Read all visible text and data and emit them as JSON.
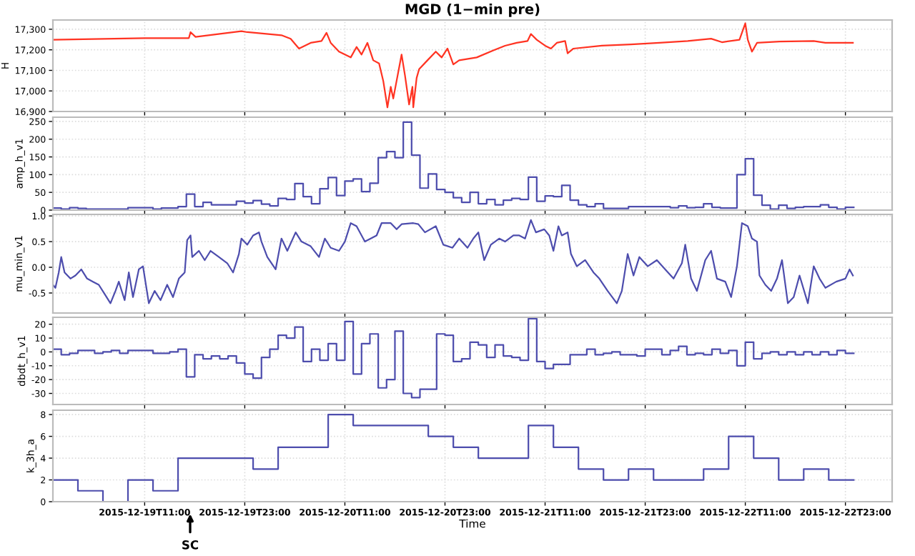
{
  "chart_data": [
    {
      "type": "line",
      "title": "MGD (1−min pre)",
      "ylabel": "H",
      "xlim": [
        "2015-12-19T00:00",
        "2015-12-23T04:36"
      ],
      "ylim": [
        16900,
        17345
      ],
      "yticks": [
        {
          "value": 16900,
          "label": "16,900"
        },
        {
          "value": 17000,
          "label": "17,000"
        },
        {
          "value": 17100,
          "label": "17,100"
        },
        {
          "value": 17200,
          "label": "17,200"
        },
        {
          "value": 17300,
          "label": "17,300"
        }
      ],
      "xticks": [
        "2015-12-19T11:00",
        "2015-12-19T23:00",
        "2015-12-20T11:00",
        "2015-12-20T23:00",
        "2015-12-21T11:00",
        "2015-12-21T23:00",
        "2015-12-22T11:00",
        "2015-12-22T23:00"
      ],
      "tick_labels": "y",
      "grid": true,
      "series": [
        {
          "color": "#ff3322",
          "x": [
            "2015-12-19T00:00",
            "2015-12-19T11:00",
            "2015-12-19T16:18",
            "2015-12-19T16:30",
            "2015-12-19T17:06",
            "2015-12-19T22:36",
            "2015-12-19T23:18",
            "2015-12-20T03:24",
            "2015-12-20T04:30",
            "2015-12-20T05:30",
            "2015-12-20T06:54",
            "2015-12-20T08:12",
            "2015-12-20T08:48",
            "2015-12-20T09:18",
            "2015-12-20T10:18",
            "2015-12-20T11:42",
            "2015-12-20T12:24",
            "2015-12-20T13:00",
            "2015-12-20T13:42",
            "2015-12-20T14:24",
            "2015-12-20T15:06",
            "2015-12-20T15:36",
            "2015-12-20T16:06",
            "2015-12-20T16:30",
            "2015-12-20T16:48",
            "2015-12-20T17:12",
            "2015-12-20T17:48",
            "2015-12-20T18:12",
            "2015-12-20T18:42",
            "2015-12-20T19:06",
            "2015-12-20T19:12",
            "2015-12-20T19:36",
            "2015-12-20T19:54",
            "2015-12-20T20:54",
            "2015-12-20T21:54",
            "2015-12-20T22:36",
            "2015-12-20T23:18",
            "2015-12-21T00:00",
            "2015-12-21T00:42",
            "2015-12-21T02:48",
            "2015-12-21T04:48",
            "2015-12-21T06:12",
            "2015-12-21T07:36",
            "2015-12-21T08:54",
            "2015-12-21T09:18",
            "2015-12-21T10:00",
            "2015-12-21T11:00",
            "2015-12-21T11:42",
            "2015-12-21T12:24",
            "2015-12-21T13:24",
            "2015-12-21T13:42",
            "2015-12-21T14:24",
            "2015-12-21T17:48",
            "2015-12-21T21:18",
            "2015-12-22T00:42",
            "2015-12-22T04:06",
            "2015-12-22T06:54",
            "2015-12-22T08:12",
            "2015-12-22T10:18",
            "2015-12-22T11:00",
            "2015-12-22T11:18",
            "2015-12-22T11:48",
            "2015-12-22T12:24",
            "2015-12-22T15:06",
            "2015-12-22T19:12",
            "2015-12-22T20:36",
            "2015-12-22T23:54"
          ],
          "values": [
            17249,
            17257,
            17257,
            17286,
            17263,
            17291,
            17286,
            17271,
            17254,
            17206,
            17234,
            17243,
            17283,
            17234,
            17191,
            17163,
            17214,
            17177,
            17234,
            17149,
            17134,
            17049,
            16920,
            17020,
            16963,
            17049,
            17177,
            17077,
            16934,
            17020,
            16920,
            17063,
            17106,
            17149,
            17191,
            17163,
            17206,
            17129,
            17149,
            17163,
            17197,
            17220,
            17234,
            17243,
            17277,
            17249,
            17220,
            17206,
            17234,
            17243,
            17183,
            17206,
            17220,
            17226,
            17234,
            17243,
            17254,
            17237,
            17249,
            17329,
            17249,
            17191,
            17234,
            17240,
            17243,
            17234,
            17234
          ]
        }
      ]
    },
    {
      "type": "step",
      "ylabel": "amp_h_v1",
      "xlim": [
        "2015-12-19T00:00",
        "2015-12-23T04:36"
      ],
      "ylim": [
        0,
        262
      ],
      "yticks": [
        0,
        50,
        100,
        150,
        200,
        250
      ],
      "xticks": [
        "2015-12-19T11:00",
        "2015-12-19T23:00",
        "2015-12-20T11:00",
        "2015-12-20T23:00",
        "2015-12-21T11:00",
        "2015-12-21T23:00",
        "2015-12-22T11:00",
        "2015-12-22T23:00"
      ],
      "tick_labels": "y",
      "grid": true,
      "x": [
        "2015-12-19T00:00",
        "2015-12-19T01:00",
        "2015-12-19T02:00",
        "2015-12-19T03:00",
        "2015-12-19T04:00",
        "2015-12-19T05:00",
        "2015-12-19T06:00",
        "2015-12-19T07:00",
        "2015-12-19T08:00",
        "2015-12-19T09:00",
        "2015-12-19T10:00",
        "2015-12-19T11:00",
        "2015-12-19T12:00",
        "2015-12-19T13:00",
        "2015-12-19T14:00",
        "2015-12-19T15:00",
        "2015-12-19T16:00",
        "2015-12-19T17:00",
        "2015-12-19T18:00",
        "2015-12-19T19:00",
        "2015-12-19T20:00",
        "2015-12-19T21:00",
        "2015-12-19T22:00",
        "2015-12-19T23:00",
        "2015-12-20T00:00",
        "2015-12-20T01:00",
        "2015-12-20T02:00",
        "2015-12-20T03:00",
        "2015-12-20T04:00",
        "2015-12-20T05:00",
        "2015-12-20T06:00",
        "2015-12-20T07:00",
        "2015-12-20T08:00",
        "2015-12-20T09:00",
        "2015-12-20T10:00",
        "2015-12-20T11:00",
        "2015-12-20T12:00",
        "2015-12-20T13:00",
        "2015-12-20T14:00",
        "2015-12-20T15:00",
        "2015-12-20T16:00",
        "2015-12-20T17:00",
        "2015-12-20T18:00",
        "2015-12-20T19:00",
        "2015-12-20T20:00",
        "2015-12-20T21:00",
        "2015-12-20T22:00",
        "2015-12-20T23:00",
        "2015-12-21T00:00",
        "2015-12-21T01:00",
        "2015-12-21T02:00",
        "2015-12-21T03:00",
        "2015-12-21T04:00",
        "2015-12-21T05:00",
        "2015-12-21T06:00",
        "2015-12-21T07:00",
        "2015-12-21T08:00",
        "2015-12-21T09:00",
        "2015-12-21T10:00",
        "2015-12-21T11:00",
        "2015-12-21T12:00",
        "2015-12-21T13:00",
        "2015-12-21T14:00",
        "2015-12-21T15:00",
        "2015-12-21T16:00",
        "2015-12-21T17:00",
        "2015-12-21T18:00",
        "2015-12-21T19:00",
        "2015-12-21T20:00",
        "2015-12-21T21:00",
        "2015-12-21T22:00",
        "2015-12-21T23:00",
        "2015-12-22T00:00",
        "2015-12-22T01:00",
        "2015-12-22T02:00",
        "2015-12-22T03:00",
        "2015-12-22T04:00",
        "2015-12-22T05:00",
        "2015-12-22T06:00",
        "2015-12-22T07:00",
        "2015-12-22T08:00",
        "2015-12-22T09:00",
        "2015-12-22T10:00",
        "2015-12-22T11:00",
        "2015-12-22T12:00",
        "2015-12-22T13:00",
        "2015-12-22T14:00",
        "2015-12-22T15:00",
        "2015-12-22T16:00",
        "2015-12-22T17:00",
        "2015-12-22T18:00",
        "2015-12-22T19:00",
        "2015-12-22T20:00",
        "2015-12-22T21:00",
        "2015-12-22T22:00",
        "2015-12-22T23:00",
        "2015-12-23T00:00"
      ],
      "series": [
        {
          "color": "#4d4dad",
          "values": [
            6,
            3,
            7,
            5,
            3,
            3,
            3,
            3,
            3,
            7,
            7,
            7,
            3,
            6,
            6,
            10,
            45,
            10,
            22,
            15,
            15,
            15,
            25,
            20,
            27,
            17,
            12,
            33,
            30,
            75,
            38,
            18,
            60,
            92,
            41,
            82,
            88,
            52,
            76,
            148,
            165,
            148,
            248,
            155,
            62,
            102,
            58,
            50,
            35,
            22,
            50,
            18,
            30,
            15,
            28,
            33,
            30,
            93,
            25,
            40,
            38,
            70,
            28,
            15,
            10,
            18,
            5,
            5,
            5,
            10,
            10,
            10,
            10,
            10,
            7,
            12,
            7,
            8,
            18,
            8,
            6,
            6,
            100,
            145,
            42,
            14,
            3,
            14,
            5,
            8,
            10,
            10,
            15,
            8,
            3,
            8,
            8
          ]
        }
      ]
    },
    {
      "type": "line",
      "ylabel": "mu_min_v1",
      "xlim": [
        "2015-12-19T00:00",
        "2015-12-23T04:36"
      ],
      "ylim": [
        -0.89,
        1.03
      ],
      "yticks": [
        {
          "value": -0.5,
          "label": "-0.5"
        },
        {
          "value": 0,
          "label": "0.0"
        },
        0.5,
        {
          "value": 1,
          "label": "1.0"
        }
      ],
      "xticks": [
        "2015-12-19T11:00",
        "2015-12-19T23:00",
        "2015-12-20T11:00",
        "2015-12-20T23:00",
        "2015-12-21T11:00",
        "2015-12-21T23:00",
        "2015-12-22T11:00",
        "2015-12-22T23:00"
      ],
      "tick_labels": "y",
      "grid": true,
      "x": [
        "2015-12-19T00:00",
        "2015-12-19T00:18",
        "2015-12-19T00:42",
        "2015-12-19T01:00",
        "2015-12-19T01:24",
        "2015-12-19T02:06",
        "2015-12-19T02:42",
        "2015-12-19T03:24",
        "2015-12-19T04:06",
        "2015-12-19T04:48",
        "2015-12-19T05:30",
        "2015-12-19T06:12",
        "2015-12-19T06:54",
        "2015-12-19T07:30",
        "2015-12-19T07:54",
        "2015-12-19T08:36",
        "2015-12-19T09:06",
        "2015-12-19T09:36",
        "2015-12-19T10:18",
        "2015-12-19T10:48",
        "2015-12-19T11:30",
        "2015-12-19T12:12",
        "2015-12-19T12:54",
        "2015-12-19T13:42",
        "2015-12-19T14:24",
        "2015-12-19T15:06",
        "2015-12-19T15:48",
        "2015-12-19T16:06",
        "2015-12-19T16:30",
        "2015-12-19T16:42",
        "2015-12-19T17:30",
        "2015-12-19T18:12",
        "2015-12-19T18:54",
        "2015-12-19T19:54",
        "2015-12-19T20:54",
        "2015-12-19T21:36",
        "2015-12-19T22:18",
        "2015-12-19T22:36",
        "2015-12-19T23:18",
        "2015-12-20T00:00",
        "2015-12-20T00:42",
        "2015-12-20T01:00",
        "2015-12-20T01:42",
        "2015-12-20T02:42",
        "2015-12-20T03:24",
        "2015-12-20T04:06",
        "2015-12-20T05:06",
        "2015-12-20T05:48",
        "2015-12-20T06:54",
        "2015-12-20T07:54",
        "2015-12-20T08:36",
        "2015-12-20T09:18",
        "2015-12-20T10:18",
        "2015-12-20T11:00",
        "2015-12-20T11:42",
        "2015-12-20T12:24",
        "2015-12-20T13:24",
        "2015-12-20T14:06",
        "2015-12-20T14:48",
        "2015-12-20T15:24",
        "2015-12-20T16:30",
        "2015-12-20T17:12",
        "2015-12-20T17:48",
        "2015-12-20T19:12",
        "2015-12-20T19:48",
        "2015-12-20T20:36",
        "2015-12-20T21:54",
        "2015-12-20T22:48",
        "2015-12-20T23:54",
        "2015-12-21T00:42",
        "2015-12-21T01:42",
        "2015-12-21T02:24",
        "2015-12-21T03:00",
        "2015-12-21T03:42",
        "2015-12-21T04:30",
        "2015-12-21T05:30",
        "2015-12-21T06:12",
        "2015-12-21T07:12",
        "2015-12-21T07:54",
        "2015-12-21T08:36",
        "2015-12-21T09:18",
        "2015-12-21T09:54",
        "2015-12-21T10:54",
        "2015-12-21T11:30",
        "2015-12-21T12:00",
        "2015-12-21T12:36",
        "2015-12-21T13:00",
        "2015-12-21T13:42",
        "2015-12-21T14:06",
        "2015-12-21T14:48",
        "2015-12-21T15:48",
        "2015-12-21T16:48",
        "2015-12-21T17:30",
        "2015-12-21T18:30",
        "2015-12-21T19:36",
        "2015-12-21T20:12",
        "2015-12-21T20:54",
        "2015-12-21T21:36",
        "2015-12-21T22:18",
        "2015-12-21T23:18",
        "2015-12-22T00:24",
        "2015-12-22T01:24",
        "2015-12-22T02:24",
        "2015-12-22T03:24",
        "2015-12-22T03:48",
        "2015-12-22T04:30",
        "2015-12-22T05:12",
        "2015-12-22T06:12",
        "2015-12-22T06:54",
        "2015-12-22T07:36",
        "2015-12-22T08:36",
        "2015-12-22T09:18",
        "2015-12-22T10:00",
        "2015-12-22T10:36",
        "2015-12-22T11:18",
        "2015-12-22T11:48",
        "2015-12-22T12:24",
        "2015-12-22T12:42",
        "2015-12-22T13:24",
        "2015-12-22T14:06",
        "2015-12-22T14:48",
        "2015-12-22T15:24",
        "2015-12-22T16:06",
        "2015-12-22T16:48",
        "2015-12-22T17:30",
        "2015-12-22T18:30",
        "2015-12-22T19:12",
        "2015-12-22T19:54",
        "2015-12-22T20:36",
        "2015-12-22T21:54",
        "2015-12-22T23:00",
        "2015-12-22T23:30",
        "2015-12-22T23:54"
      ],
      "series": [
        {
          "color": "#4d4dad",
          "values": [
            -0.34,
            -0.4,
            -0.1,
            0.2,
            -0.1,
            -0.22,
            -0.16,
            -0.04,
            -0.22,
            -0.28,
            -0.34,
            -0.52,
            -0.7,
            -0.46,
            -0.28,
            -0.64,
            -0.1,
            -0.58,
            -0.04,
            0.02,
            -0.7,
            -0.46,
            -0.64,
            -0.34,
            -0.58,
            -0.22,
            -0.1,
            0.53,
            0.62,
            0.2,
            0.32,
            0.14,
            0.32,
            0.2,
            0.08,
            -0.1,
            0.26,
            0.56,
            0.44,
            0.62,
            0.68,
            0.5,
            0.2,
            -0.04,
            0.56,
            0.32,
            0.68,
            0.5,
            0.41,
            0.2,
            0.56,
            0.38,
            0.32,
            0.5,
            0.86,
            0.8,
            0.5,
            0.56,
            0.62,
            0.86,
            0.86,
            0.74,
            0.84,
            0.86,
            0.84,
            0.68,
            0.8,
            0.44,
            0.38,
            0.56,
            0.38,
            0.56,
            0.68,
            0.14,
            0.44,
            0.56,
            0.5,
            0.62,
            0.62,
            0.56,
            0.92,
            0.68,
            0.74,
            0.62,
            0.32,
            0.8,
            0.62,
            0.68,
            0.26,
            0.02,
            0.14,
            -0.1,
            -0.22,
            -0.46,
            -0.7,
            -0.46,
            0.26,
            -0.16,
            0.2,
            0.02,
            0.14,
            -0.04,
            -0.22,
            0.08,
            0.44,
            -0.22,
            -0.46,
            0.14,
            0.32,
            -0.22,
            -0.28,
            -0.58,
            0.02,
            0.86,
            0.8,
            0.56,
            0.5,
            -0.16,
            -0.34,
            -0.46,
            -0.22,
            0.14,
            -0.7,
            -0.58,
            -0.16,
            -0.7,
            0.02,
            -0.22,
            -0.4,
            -0.28,
            -0.22,
            -0.04,
            -0.16
          ]
        }
      ]
    },
    {
      "type": "step",
      "ylabel": "dbdt_h_v1",
      "xlim": [
        "2015-12-19T00:00",
        "2015-12-23T04:36"
      ],
      "ylim": [
        -38,
        25
      ],
      "yticks": [
        -30,
        -20,
        -10,
        0,
        10,
        20
      ],
      "xticks": [
        "2015-12-19T11:00",
        "2015-12-19T23:00",
        "2015-12-20T11:00",
        "2015-12-20T23:00",
        "2015-12-21T11:00",
        "2015-12-21T23:00",
        "2015-12-22T11:00",
        "2015-12-22T23:00"
      ],
      "tick_labels": "y",
      "grid": true,
      "series": [
        {
          "color": "#4d4dad",
          "x": [
            "2015-12-19T00:00",
            "2015-12-19T01:00",
            "2015-12-19T02:00",
            "2015-12-19T03:00",
            "2015-12-19T04:00",
            "2015-12-19T05:00",
            "2015-12-19T06:00",
            "2015-12-19T07:00",
            "2015-12-19T08:00",
            "2015-12-19T09:00",
            "2015-12-19T10:00",
            "2015-12-19T11:00",
            "2015-12-19T12:00",
            "2015-12-19T13:00",
            "2015-12-19T14:00",
            "2015-12-19T15:00",
            "2015-12-19T16:00",
            "2015-12-19T17:00",
            "2015-12-19T18:00",
            "2015-12-19T19:00",
            "2015-12-19T20:00",
            "2015-12-19T21:00",
            "2015-12-19T22:00",
            "2015-12-19T23:00",
            "2015-12-20T00:00",
            "2015-12-20T01:00",
            "2015-12-20T02:00",
            "2015-12-20T03:00",
            "2015-12-20T04:00",
            "2015-12-20T05:00",
            "2015-12-20T06:00",
            "2015-12-20T07:00",
            "2015-12-20T08:00",
            "2015-12-20T09:00",
            "2015-12-20T10:00",
            "2015-12-20T11:00",
            "2015-12-20T12:00",
            "2015-12-20T13:00",
            "2015-12-20T14:00",
            "2015-12-20T15:00",
            "2015-12-20T16:00",
            "2015-12-20T17:00",
            "2015-12-20T18:00",
            "2015-12-20T19:00",
            "2015-12-20T20:00",
            "2015-12-20T21:00",
            "2015-12-20T22:00",
            "2015-12-20T23:00",
            "2015-12-21T00:00",
            "2015-12-21T01:00",
            "2015-12-21T02:00",
            "2015-12-21T03:00",
            "2015-12-21T04:00",
            "2015-12-21T05:00",
            "2015-12-21T06:00",
            "2015-12-21T07:00",
            "2015-12-21T08:00",
            "2015-12-21T09:00",
            "2015-12-21T10:00",
            "2015-12-21T11:00",
            "2015-12-21T12:00",
            "2015-12-21T13:00",
            "2015-12-21T14:00",
            "2015-12-21T15:00",
            "2015-12-21T16:00",
            "2015-12-21T17:00",
            "2015-12-21T18:00",
            "2015-12-21T19:00",
            "2015-12-21T20:00",
            "2015-12-21T21:00",
            "2015-12-21T22:00",
            "2015-12-21T23:00",
            "2015-12-22T00:00",
            "2015-12-22T01:00",
            "2015-12-22T02:00",
            "2015-12-22T03:00",
            "2015-12-22T04:00",
            "2015-12-22T05:00",
            "2015-12-22T06:00",
            "2015-12-22T07:00",
            "2015-12-22T08:00",
            "2015-12-22T09:00",
            "2015-12-22T10:00",
            "2015-12-22T11:00",
            "2015-12-22T12:00",
            "2015-12-22T13:00",
            "2015-12-22T14:00",
            "2015-12-22T15:00",
            "2015-12-22T16:00",
            "2015-12-22T17:00",
            "2015-12-22T18:00",
            "2015-12-22T19:00",
            "2015-12-22T20:00",
            "2015-12-22T21:00",
            "2015-12-22T22:00",
            "2015-12-22T23:00",
            "2015-12-23T00:00"
          ],
          "values": [
            2,
            -2,
            -1,
            1,
            1,
            -1,
            0,
            1,
            -1,
            1,
            1,
            1,
            -1,
            -1,
            0,
            2,
            -18,
            -2,
            -5,
            -3,
            -5,
            -3,
            -8,
            -16,
            -19,
            -4,
            2,
            12,
            10,
            18,
            -7,
            2,
            -6,
            6,
            -6,
            22,
            -16,
            6,
            13,
            -26,
            -20,
            15,
            -30,
            -33,
            -27,
            -27,
            13,
            12,
            -7,
            -5,
            7,
            5,
            -4,
            5,
            -3,
            -4,
            -6,
            24,
            -7,
            -12,
            -9,
            -9,
            -2,
            -2,
            2,
            -2,
            -1,
            0,
            -2,
            -2,
            -3,
            2,
            2,
            -2,
            1,
            4,
            -2,
            -1,
            -2,
            2,
            -1,
            1,
            -10,
            7,
            -5,
            -1,
            0,
            -2,
            0,
            -2,
            0,
            -2,
            0,
            -2,
            1,
            -1,
            -1
          ]
        }
      ]
    },
    {
      "type": "step",
      "ylabel": "k_3h_a",
      "xlabel": "Time",
      "xlim": [
        "2015-12-19T00:00",
        "2015-12-23T04:36"
      ],
      "ylim": [
        0,
        8.4
      ],
      "yticks": [
        0,
        2,
        4,
        6,
        8
      ],
      "xticks": [
        "2015-12-19T11:00",
        "2015-12-19T23:00",
        "2015-12-20T11:00",
        "2015-12-20T23:00",
        "2015-12-21T11:00",
        "2015-12-21T23:00",
        "2015-12-22T11:00",
        "2015-12-22T23:00"
      ],
      "grid": true,
      "annotations": [
        "SC"
      ],
      "x": [
        "2015-12-19T00:00",
        "2015-12-19T03:00",
        "2015-12-19T06:00",
        "2015-12-19T09:00",
        "2015-12-19T12:00",
        "2015-12-19T15:00",
        "2015-12-19T18:00",
        "2015-12-19T21:00",
        "2015-12-20T00:00",
        "2015-12-20T03:00",
        "2015-12-20T06:00",
        "2015-12-20T09:00",
        "2015-12-20T12:00",
        "2015-12-20T15:00",
        "2015-12-20T18:00",
        "2015-12-20T21:00",
        "2015-12-21T00:00",
        "2015-12-21T03:00",
        "2015-12-21T06:00",
        "2015-12-21T09:00",
        "2015-12-21T12:00",
        "2015-12-21T15:00",
        "2015-12-21T18:00",
        "2015-12-21T21:00",
        "2015-12-22T00:00",
        "2015-12-22T03:00",
        "2015-12-22T06:00",
        "2015-12-22T09:00",
        "2015-12-22T12:00",
        "2015-12-22T15:00",
        "2015-12-22T18:00",
        "2015-12-22T21:00",
        "2015-12-23T00:00"
      ],
      "series": [
        {
          "color": "#4d4dad",
          "values": [
            2,
            1,
            0,
            2,
            1,
            4,
            4,
            4,
            3,
            5,
            5,
            8,
            7,
            7,
            7,
            6,
            5,
            4,
            4,
            7,
            5,
            3,
            2,
            3,
            2,
            2,
            3,
            6,
            4,
            2,
            3,
            2,
            2
          ]
        }
      ]
    }
  ]
}
